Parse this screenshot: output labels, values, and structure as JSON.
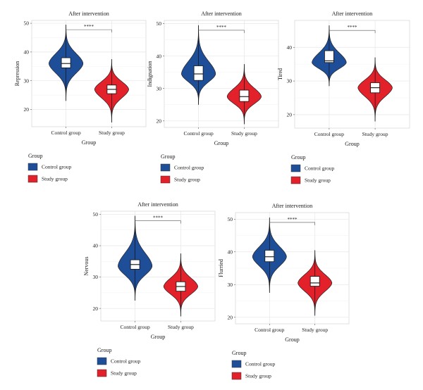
{
  "colors": {
    "control": "#1f4e99",
    "study": "#e3212b",
    "panel_bg": "#ffffff",
    "grid": "#e6e6e6",
    "box": "#ffffff"
  },
  "chart_data": [
    {
      "type": "violin",
      "title": "After intervention",
      "xlabel": "Group",
      "ylabel": "Repression",
      "categories": [
        "Control group",
        "Study group"
      ],
      "ylim": [
        14,
        51
      ],
      "yticks": [
        20,
        30,
        40,
        50
      ],
      "significance": "****",
      "series": [
        {
          "name": "Control group",
          "min": 23,
          "q1": 34.5,
          "median": 36,
          "q3": 38,
          "max": 49.5,
          "mode": 36
        },
        {
          "name": "Study group",
          "min": 15.5,
          "q1": 25.5,
          "median": 27,
          "q3": 28.5,
          "max": 37.5,
          "mode": 27
        }
      ],
      "legend": {
        "title": "Group",
        "entries": [
          "Control group",
          "Study group"
        ],
        "placement": "bottom"
      }
    },
    {
      "type": "violin",
      "title": "After intervention",
      "xlabel": "Group",
      "ylabel": "Indignation",
      "categories": [
        "Control group",
        "Study group"
      ],
      "ylim": [
        18,
        51
      ],
      "yticks": [
        20,
        30,
        40,
        50
      ],
      "significance": "****",
      "series": [
        {
          "name": "Control group",
          "min": 25,
          "q1": 32.5,
          "median": 34.5,
          "q3": 37,
          "max": 49.5,
          "mode": 34.5
        },
        {
          "name": "Study group",
          "min": 19,
          "q1": 26,
          "median": 27.5,
          "q3": 29.5,
          "max": 37.5,
          "mode": 27.5
        }
      ],
      "legend": {
        "title": "Group",
        "entries": [
          "Control group",
          "Study group"
        ],
        "placement": "bottom"
      }
    },
    {
      "type": "violin",
      "title": "After intervention",
      "xlabel": "Group",
      "ylabel": "Tired",
      "categories": [
        "Control group",
        "Study group"
      ],
      "ylim": [
        16,
        48
      ],
      "yticks": [
        20,
        30,
        40
      ],
      "significance": "****",
      "series": [
        {
          "name": "Control group",
          "min": 28.5,
          "q1": 35.5,
          "median": 36,
          "q3": 39,
          "max": 46.5,
          "mode": 35.5
        },
        {
          "name": "Study group",
          "min": 18,
          "q1": 26.5,
          "median": 28,
          "q3": 29.5,
          "max": 37,
          "mode": 28
        }
      ],
      "legend": {
        "title": "Group",
        "entries": [
          "Control group",
          "Study group"
        ],
        "placement": "bottom"
      }
    },
    {
      "type": "violin",
      "title": "After intervention",
      "xlabel": "Group",
      "ylabel": "Nervous",
      "categories": [
        "Control group",
        "Study group"
      ],
      "ylim": [
        16,
        51
      ],
      "yticks": [
        20,
        30,
        40,
        50
      ],
      "significance": "****",
      "series": [
        {
          "name": "Control group",
          "min": 22.5,
          "q1": 32.5,
          "median": 34,
          "q3": 35.5,
          "max": 49.5,
          "mode": 33.5
        },
        {
          "name": "Study group",
          "min": 17.5,
          "q1": 25.5,
          "median": 27,
          "q3": 28.5,
          "max": 37.5,
          "mode": 27
        }
      ],
      "legend": {
        "title": "Group",
        "entries": [
          "Control group",
          "Study group"
        ],
        "placement": "bottom"
      }
    },
    {
      "type": "violin",
      "title": "After intervention",
      "xlabel": "Group",
      "ylabel": "Flurried",
      "categories": [
        "Control group",
        "Study group"
      ],
      "ylim": [
        18,
        52
      ],
      "yticks": [
        20,
        30,
        40,
        50
      ],
      "significance": "****",
      "series": [
        {
          "name": "Control group",
          "min": 27.5,
          "q1": 37,
          "median": 38.5,
          "q3": 40.5,
          "max": 50.5,
          "mode": 38.5
        },
        {
          "name": "Study group",
          "min": 20.5,
          "q1": 29.5,
          "median": 30.5,
          "q3": 32.5,
          "max": 40.5,
          "mode": 30.5
        }
      ],
      "legend": {
        "title": "Group",
        "entries": [
          "Control group",
          "Study group"
        ],
        "placement": "bottom"
      }
    }
  ]
}
